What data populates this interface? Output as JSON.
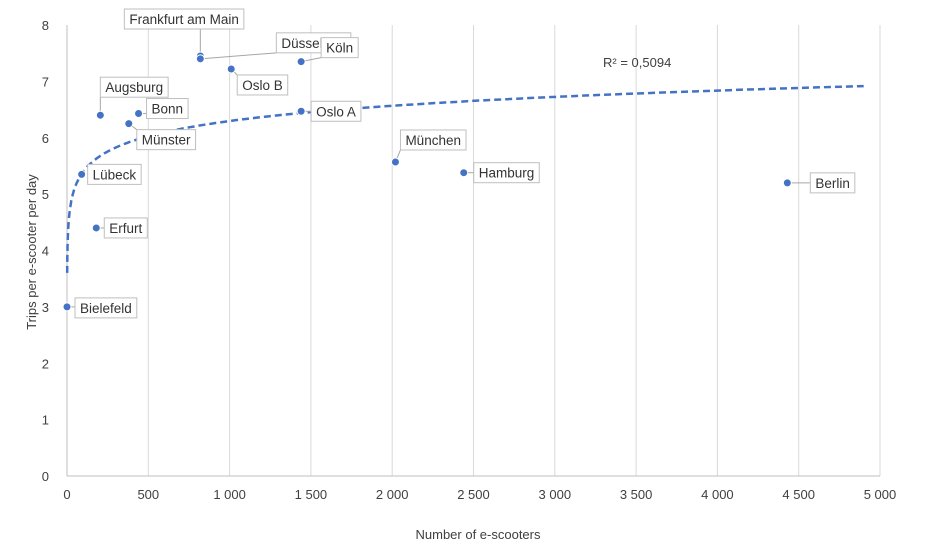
{
  "chart_data": {
    "type": "scatter",
    "xlabel": "Number of e-scooters",
    "ylabel": "Trips per e-scooter per day",
    "xlim": [
      0,
      5000
    ],
    "ylim": [
      0,
      8
    ],
    "x_ticks": [
      0,
      500,
      1000,
      1500,
      2000,
      2500,
      3000,
      3500,
      4000,
      4500,
      5000
    ],
    "x_tick_labels": [
      "0",
      "500",
      "1 000",
      "1 500",
      "2 000",
      "2 500",
      "3 000",
      "3 500",
      "4 000",
      "4 500",
      "5 000"
    ],
    "y_ticks": [
      0,
      1,
      2,
      3,
      4,
      5,
      6,
      7,
      8
    ],
    "y_tick_labels": [
      "0",
      "1",
      "2",
      "3",
      "4",
      "5",
      "6",
      "7",
      "8"
    ],
    "grid": "vertical",
    "point_color": "#4472c4",
    "points": [
      {
        "label": "Bielefeld",
        "x": 0,
        "y": 3.0
      },
      {
        "label": "Lübeck",
        "x": 90,
        "y": 5.35
      },
      {
        "label": "Erfurt",
        "x": 180,
        "y": 4.4
      },
      {
        "label": "Augsburg",
        "x": 205,
        "y": 6.4
      },
      {
        "label": "Münster",
        "x": 380,
        "y": 6.25
      },
      {
        "label": "Bonn",
        "x": 440,
        "y": 6.43
      },
      {
        "label": "Frankfurt am Main",
        "x": 820,
        "y": 7.45
      },
      {
        "label": "Düsseldorf",
        "x": 820,
        "y": 7.4
      },
      {
        "label": "Oslo B",
        "x": 1010,
        "y": 7.22
      },
      {
        "label": "Köln",
        "x": 1440,
        "y": 7.35
      },
      {
        "label": "Oslo A",
        "x": 1440,
        "y": 6.47
      },
      {
        "label": "München",
        "x": 2020,
        "y": 5.57
      },
      {
        "label": "Hamburg",
        "x": 2440,
        "y": 5.38
      },
      {
        "label": "Berlin",
        "x": 4430,
        "y": 5.2
      }
    ],
    "trendline": {
      "type": "logarithmic",
      "x_range": [
        1,
        4900
      ],
      "r2_label": "R² = 0,5094",
      "color": "#4472c4"
    }
  }
}
